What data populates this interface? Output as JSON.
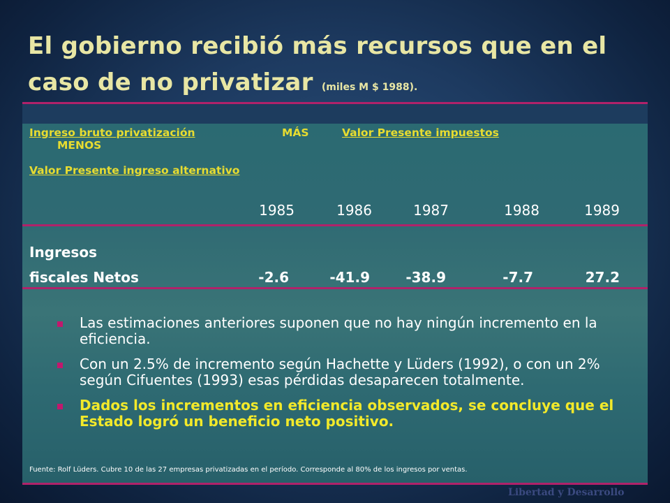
{
  "title": {
    "main_line1": "El gobierno recibió más recursos que en el",
    "main_line2": "caso de no privatizar",
    "subtitle": "(miles M $ 1988)."
  },
  "formula": {
    "term1": "Ingreso bruto privatización",
    "op_plus": "MÁS",
    "term2": "Valor Presente impuestos",
    "op_minus": "MENOS",
    "term3": "Valor  Presente ingreso alternativo"
  },
  "table": {
    "years": [
      "1985",
      "1986",
      "1987",
      "1988",
      "1989"
    ],
    "row_label_line1": "Ingresos",
    "row_label_line2": "fiscales Netos",
    "values": [
      "-2.6",
      "-41.9",
      "-38.9",
      "-7.7",
      "27.2"
    ]
  },
  "bullets": [
    "Las estimaciones anteriores suponen que no hay ningún incremento en la eficiencia.",
    "Con  un 2.5% de incremento según Hachette y Lüders (1992), o con un 2% según Cifuentes (1993) esas pérdidas desaparecen totalmente.",
    "Dados los incrementos en eficiencia observados, se concluye que el Estado logró un beneficio neto positivo."
  ],
  "footnote": "Fuente: Rolf Lüders.  Cubre 10 de las 27 empresas privatizadas en el período. Corresponde al 80% de los ingresos por ventas.",
  "brand": "Libertad y Desarrollo",
  "colors": {
    "title": "#e8e6a4",
    "formula": "#e7dc30",
    "accent_rule": "#b0226a",
    "highlight": "#f2e92a"
  }
}
